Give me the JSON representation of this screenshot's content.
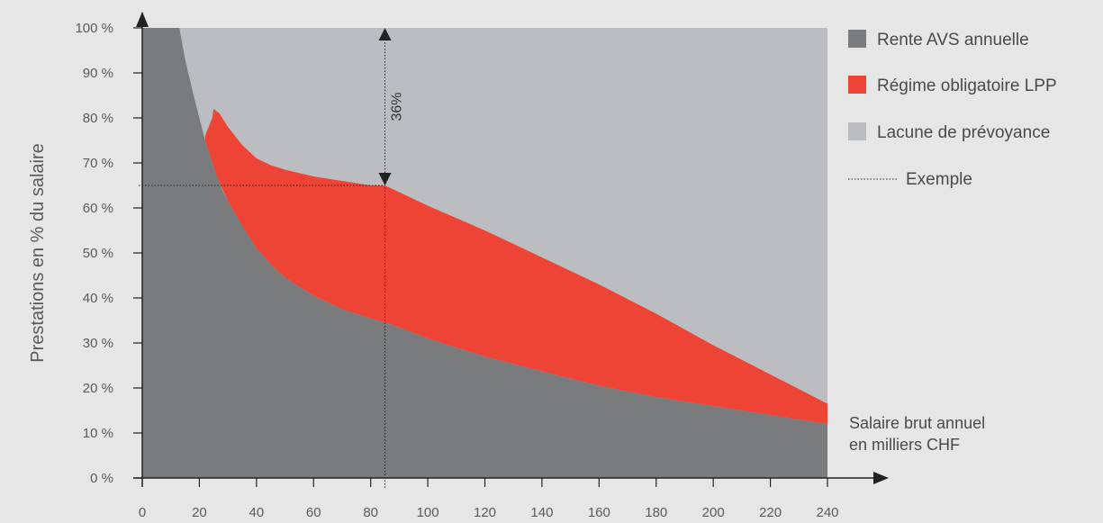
{
  "chart_data": {
    "type": "area",
    "xlabel": "Salaire brut annuel",
    "xlabel_line2": "en milliers CHF",
    "ylabel": "Prestations en % du salaire",
    "xlim": [
      0,
      240
    ],
    "ylim": [
      0,
      100
    ],
    "x_ticks": [
      0,
      20,
      40,
      60,
      80,
      100,
      120,
      140,
      160,
      180,
      200,
      220,
      240
    ],
    "y_ticks": [
      0,
      10,
      20,
      30,
      40,
      50,
      60,
      70,
      80,
      90,
      100
    ],
    "y_tick_labels": [
      "0 %",
      "10 %",
      "20 %",
      "30 %",
      "40 %",
      "50 %",
      "60 %",
      "70 %",
      "80 %",
      "90 %",
      "100 %"
    ],
    "grid": false,
    "legend_position": "right",
    "series": [
      {
        "name": "Rente AVS annuelle",
        "color": "#797b7d",
        "x": [
          0,
          13,
          15,
          18,
          20,
          22,
          25,
          28,
          30,
          35,
          40,
          45,
          50,
          60,
          70,
          80,
          85,
          90,
          100,
          120,
          140,
          160,
          180,
          200,
          220,
          240
        ],
        "values": [
          100,
          100,
          93,
          85,
          80,
          75,
          69,
          64,
          61.5,
          56,
          51,
          47.5,
          44.5,
          40.5,
          37.5,
          35.5,
          34.5,
          33.5,
          31,
          27,
          23.7,
          20.5,
          18,
          16,
          14,
          12
        ]
      },
      {
        "name": "Régime obligatoire LPP",
        "color": "#ee4436",
        "x": [
          22,
          24.5,
          25,
          27,
          30,
          35,
          40,
          45,
          50,
          60,
          70,
          80,
          85,
          90,
          100,
          120,
          140,
          160,
          180,
          200,
          220,
          240
        ],
        "values": [
          76,
          80,
          82,
          81,
          78,
          74,
          71,
          69.5,
          68.5,
          67,
          66,
          65,
          65,
          63.5,
          60.5,
          55,
          49,
          43,
          36.5,
          29.5,
          23,
          16.5
        ]
      },
      {
        "name": "Lacune de prévoyance",
        "color": "#bcbdc0",
        "x": [
          0,
          240
        ],
        "values": [
          100,
          100
        ]
      }
    ],
    "example": {
      "name": "Exemple",
      "x": 85,
      "y": 65,
      "gap_label": "36%"
    }
  }
}
